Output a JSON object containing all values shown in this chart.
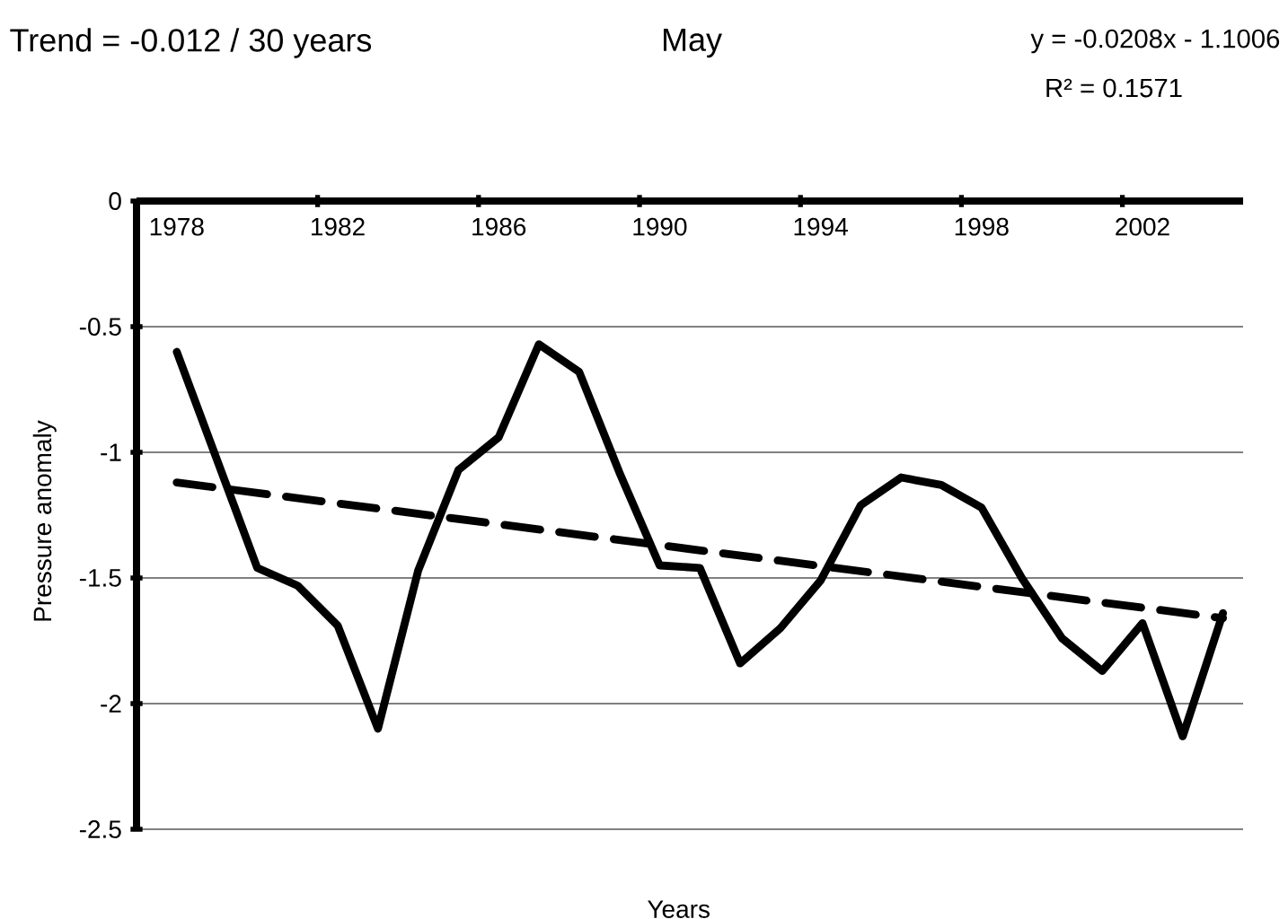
{
  "chart_data": {
    "type": "line",
    "title": "May",
    "xlabel": "Years",
    "ylabel": "Pressure anomaly",
    "annotations": [
      "Trend = -0.012 / 30 years",
      "y = -0.0208x - 1.1006",
      "R² = 0.1571"
    ],
    "x": [
      1978,
      1979,
      1980,
      1981,
      1982,
      1983,
      1984,
      1985,
      1986,
      1987,
      1988,
      1989,
      1990,
      1991,
      1992,
      1993,
      1994,
      1995,
      1996,
      1997,
      1998,
      1999,
      2000,
      2001,
      2002,
      2003,
      2004
    ],
    "series": [
      {
        "color": "#000000",
        "line_style": "solid",
        "values": [
          -0.6,
          -1.03,
          -1.46,
          -1.53,
          -1.69,
          -2.1,
          -1.47,
          -1.07,
          -0.94,
          -0.57,
          -0.68,
          -1.08,
          -1.45,
          -1.46,
          -1.84,
          -1.7,
          -1.51,
          -1.21,
          -1.1,
          -1.13,
          -1.22,
          -1.5,
          -1.74,
          -1.87,
          -1.68,
          -2.13,
          -1.64
        ]
      },
      {
        "type": "line",
        "color": "#000000",
        "line_style": "dashed",
        "x": [
          1978,
          2004
        ],
        "values": [
          -1.12,
          -1.66
        ]
      }
    ],
    "xlim": [
      1977,
      2004.5
    ],
    "xticks": [
      1978,
      1982,
      1986,
      1990,
      1994,
      1998,
      2002,
      {
        "value": 1981.5,
        "label": null
      },
      {
        "value": 1985.5,
        "label": null
      },
      {
        "value": 1989.5,
        "label": null
      },
      {
        "value": 1993.5,
        "label": null
      },
      {
        "value": 1997.5,
        "label": null
      },
      {
        "value": 2001.5,
        "label": null
      }
    ],
    "ylim": [
      -2.5,
      0
    ],
    "yticks": [
      0,
      -0.5,
      -1,
      -1.5,
      -2,
      -2.5
    ],
    "grid": "y"
  }
}
